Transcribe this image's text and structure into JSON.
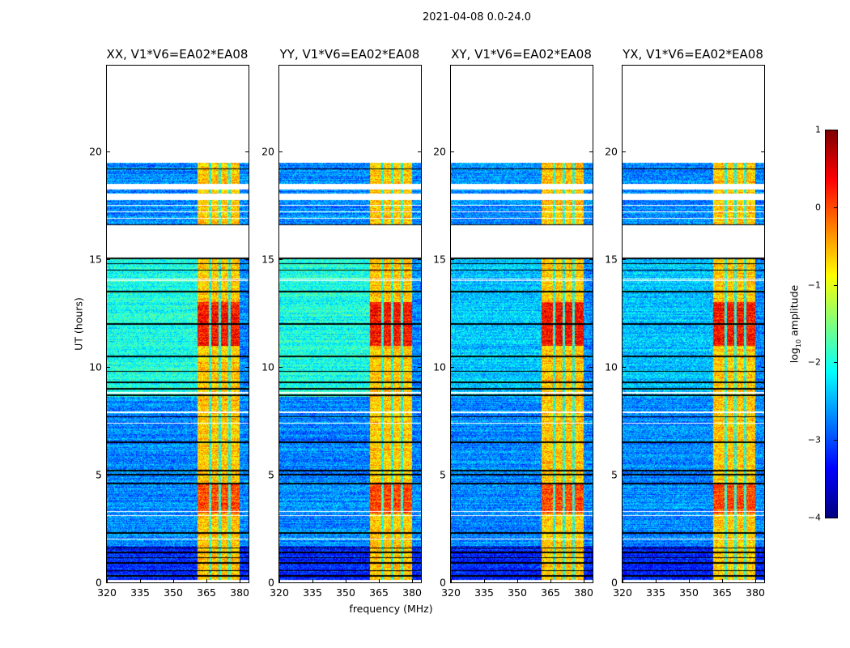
{
  "suptitle": "2021-04-08 0.0-24.0",
  "xlabel": "frequency (MHz)",
  "ylabel": "UT (hours)",
  "colorbar": {
    "label_prefix": "log",
    "label_sub": "10",
    "label_suffix": " amplitude",
    "ticks": [
      1,
      0,
      -1,
      -2,
      -3,
      -4
    ],
    "tick_labels": [
      "1",
      "0",
      "−1",
      "−2",
      "−3",
      "−4"
    ],
    "range": [
      -4,
      1
    ],
    "colormap": "jet"
  },
  "chart_data": {
    "type": "heatmap",
    "title": "2021-04-08 0.0-24.0",
    "xlabel": "frequency (MHz)",
    "ylabel": "UT (hours)",
    "xlim": [
      320,
      384
    ],
    "ylim": [
      0,
      24
    ],
    "xticks": [
      320,
      335,
      350,
      365,
      380
    ],
    "xtick_labels": [
      "320",
      "335",
      "350",
      "365",
      "380"
    ],
    "yticks": [
      0,
      5,
      10,
      15,
      20
    ],
    "ytick_labels": [
      "0",
      "5",
      "10",
      "15",
      "20"
    ],
    "panels": [
      {
        "title": "XX, V1*V6=EA02*EA08",
        "diffuse_level": -2.0
      },
      {
        "title": "YY, V1*V6=EA02*EA08",
        "diffuse_level": -2.0
      },
      {
        "title": "XY, V1*V6=EA02*EA08",
        "diffuse_level": -2.6
      },
      {
        "title": "YX, V1*V6=EA02*EA08",
        "diffuse_level": -2.6
      }
    ],
    "background_level": -2.7,
    "rfi_band_mhz": [
      361,
      380
    ],
    "rfi_band_level": -0.6,
    "rfi_peak_ut": [
      11,
      13
    ],
    "rfi_peak_level": 0.3,
    "band_gaps_mhz": [
      366.5,
      371,
      375.5
    ],
    "data_ut_range": [
      0.1,
      19.5
    ],
    "flagged_ut_ranges": [
      [
        15.1,
        16.6
      ],
      [
        17.75,
        18.05
      ],
      [
        18.25,
        18.5
      ],
      [
        19.5,
        24
      ]
    ],
    "black_rows_ut": [
      0.3,
      0.55,
      0.9,
      1.15,
      1.4,
      1.6,
      2.3,
      4.6,
      5.0,
      5.2,
      6.5,
      7.7,
      8.7,
      9.0,
      9.3,
      9.8,
      10.5,
      12.0,
      13.5,
      14.5,
      14.8,
      15.05,
      16.6,
      19.2
    ],
    "white_rows_ut": [
      2.0,
      3.1,
      3.3,
      7.4,
      7.9,
      8.8,
      14.0,
      14.1,
      16.9,
      17.2,
      17.5
    ]
  }
}
